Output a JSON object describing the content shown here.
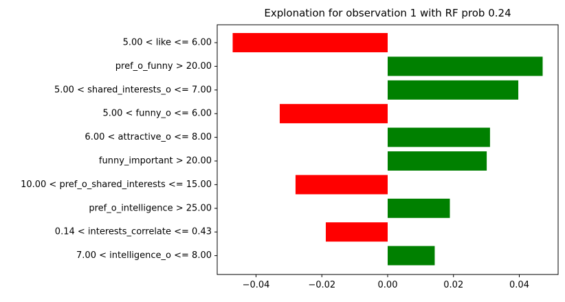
{
  "chart_data": {
    "type": "bar",
    "orientation": "horizontal",
    "title": "Explonation for observation 1 with RF prob 0.24",
    "xlabel": "",
    "ylabel": "",
    "xlim": [
      -0.0518,
      0.0518
    ],
    "x_ticks": [
      -0.04,
      -0.02,
      0.0,
      0.02,
      0.04
    ],
    "x_tick_labels": [
      "−0.04",
      "−0.02",
      "0.00",
      "0.02",
      "0.04"
    ],
    "grid": false,
    "legend": "none",
    "categories": [
      "5.00 < like <= 6.00",
      "pref_o_funny > 20.00",
      "5.00 < shared_interests_o <= 7.00",
      "5.00 < funny_o <= 6.00",
      "6.00 < attractive_o <= 8.00",
      "funny_important > 20.00",
      "10.00 < pref_o_shared_interests <= 15.00",
      "pref_o_intelligence > 25.00",
      "0.14 < interests_correlate <= 0.43",
      "7.00 < intelligence_o <= 8.00"
    ],
    "values": [
      -0.0471,
      0.0471,
      0.0397,
      -0.0328,
      0.0311,
      0.0301,
      -0.028,
      0.0189,
      -0.0188,
      0.0143
    ],
    "colors": {
      "positive": "#008000",
      "negative": "#ff0000"
    }
  }
}
